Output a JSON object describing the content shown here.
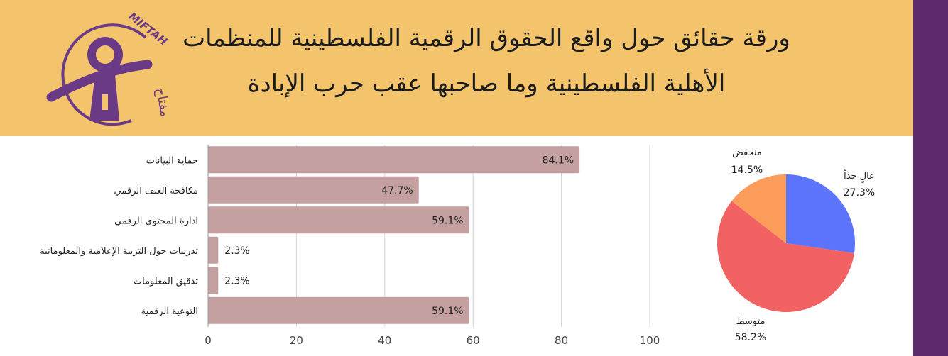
{
  "header": {
    "title_line1": "ورقة حقائق حول واقع الحقوق الرقمية الفلسطينية للمنظمات",
    "title_line2": "الأهلية الفلسطينية وما صاحبها عقب حرب الإبادة",
    "logo_text_latin": "MIFTAH",
    "logo_text_arabic": "مفتاح"
  },
  "colors": {
    "header_bg": "#f4c46d",
    "side_strip": "#5c2a6d",
    "logo_purple": "#6b3a87",
    "bar_fill": "#c4a0a0"
  },
  "chart_data": [
    {
      "type": "bar",
      "orientation": "horizontal",
      "categories": [
        "حماية البيانات",
        "مكافحة العنف الرقمي",
        "ادارة المحتوى الرقمي",
        "تدريبات حول التربية الإعلامية والمعلوماتية",
        "تدقيق المعلومات",
        "التوعية الرقمية"
      ],
      "values": [
        84.1,
        47.7,
        59.1,
        2.3,
        2.3,
        59.1
      ],
      "value_labels": [
        "84.1%",
        "47.7%",
        "59.1%",
        "2.3%",
        "2.3%",
        "59.1%"
      ],
      "xlim": [
        0,
        100
      ],
      "xticks": [
        "0",
        "20",
        "40",
        "60",
        "80",
        "100"
      ],
      "grid": true,
      "color": "#c4a0a0"
    },
    {
      "type": "pie",
      "labels": [
        "عالٍ جداً",
        "متوسط",
        "منخفض"
      ],
      "values": [
        27.3,
        58.2,
        14.5
      ],
      "value_labels": [
        "27.3%",
        "58.2%",
        "14.5%"
      ],
      "colors": [
        "#5b74fb",
        "#f26262",
        "#fb9c5a"
      ]
    }
  ]
}
